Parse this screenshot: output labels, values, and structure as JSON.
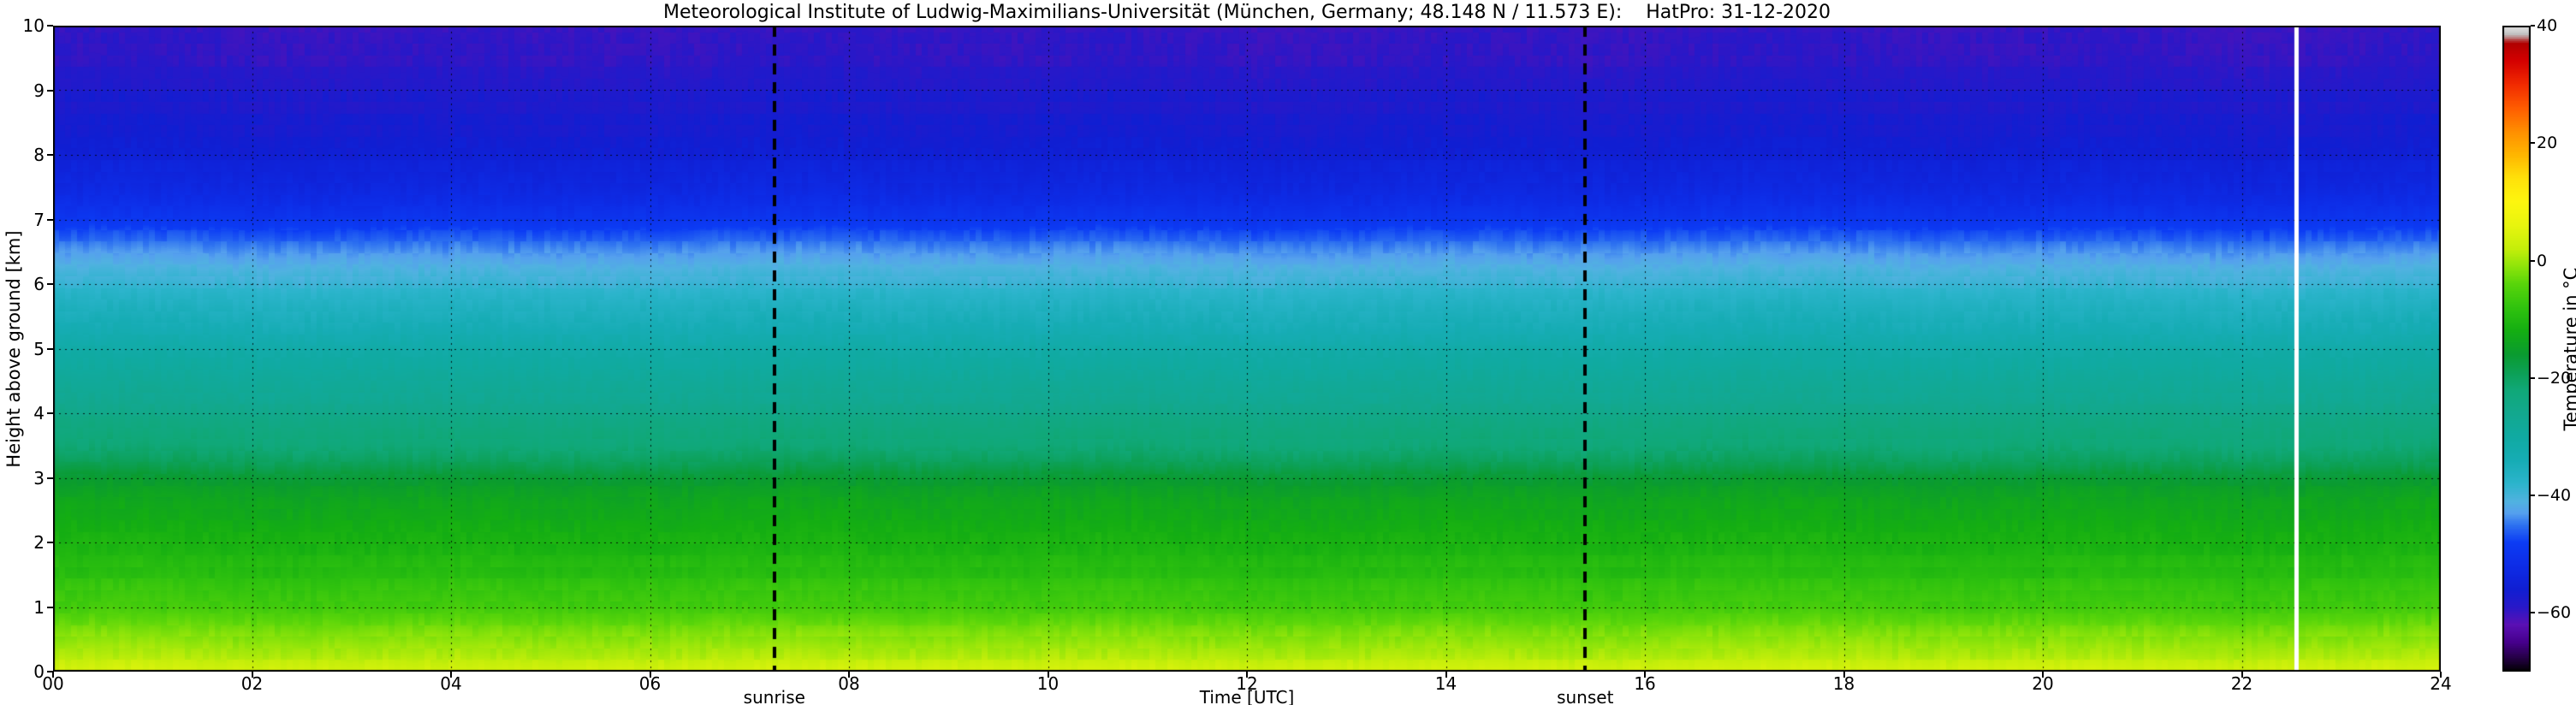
{
  "chart_data": {
    "type": "heatmap",
    "title": "Meteorological Institute of Ludwig-Maximilians-Universität (München, Germany; 48.148 N / 11.573 E):    HatPro: 31-12-2020",
    "xlabel": "Time [UTC]",
    "ylabel": "Height above ground [km]",
    "x_range_hours": [
      0,
      24
    ],
    "y_range_km": [
      0,
      10
    ],
    "grid_style": "dotted",
    "x_ticks": {
      "values": [
        0,
        2,
        4,
        6,
        8,
        10,
        12,
        14,
        16,
        18,
        20,
        22,
        24
      ],
      "labels": [
        "00",
        "02",
        "04",
        "06",
        "08",
        "10",
        "12",
        "14",
        "16",
        "18",
        "20",
        "22",
        "24"
      ]
    },
    "y_ticks": {
      "values": [
        0,
        1,
        2,
        3,
        4,
        5,
        6,
        7,
        8,
        9,
        10
      ],
      "labels": [
        "0",
        "1",
        "2",
        "3",
        "4",
        "5",
        "6",
        "7",
        "8",
        "9",
        "10"
      ]
    },
    "colorbar": {
      "label": "Temperature in °C",
      "tick_values": [
        40,
        20,
        0,
        -20,
        -40,
        -60
      ],
      "tick_labels": [
        "40",
        "20",
        "0",
        "−20",
        "−40",
        "−60"
      ],
      "range": [
        -70,
        40
      ],
      "stops": [
        [
          -70,
          "#000000"
        ],
        [
          -68,
          "#20003c"
        ],
        [
          -65,
          "#46008c"
        ],
        [
          -62,
          "#5a10b4"
        ],
        [
          -59,
          "#2818c8"
        ],
        [
          -56,
          "#101ed2"
        ],
        [
          -52,
          "#0d2ce6"
        ],
        [
          -48,
          "#0c3cf4"
        ],
        [
          -45,
          "#2e72f0"
        ],
        [
          -43,
          "#55a0ee"
        ],
        [
          -41,
          "#50b2e0"
        ],
        [
          -38,
          "#2cb4cc"
        ],
        [
          -34,
          "#16acb4"
        ],
        [
          -30,
          "#10aaa2"
        ],
        [
          -26,
          "#12a88e"
        ],
        [
          -22,
          "#10a878"
        ],
        [
          -19,
          "#0ca054"
        ],
        [
          -16,
          "#0a9b30"
        ],
        [
          -12,
          "#14ae12"
        ],
        [
          -8,
          "#30c30e"
        ],
        [
          -4,
          "#58d50a"
        ],
        [
          -1,
          "#8ee40a"
        ],
        [
          2,
          "#c4ee0a"
        ],
        [
          6,
          "#e8f50e"
        ],
        [
          10,
          "#fdf60e"
        ],
        [
          14,
          "#ffe10a"
        ],
        [
          18,
          "#ffb600"
        ],
        [
          22,
          "#ff8e00"
        ],
        [
          26,
          "#ff5c00"
        ],
        [
          30,
          "#f12a00"
        ],
        [
          34,
          "#d40000"
        ],
        [
          37,
          "#b00000"
        ],
        [
          38.5,
          "#c0c0c0"
        ],
        [
          40,
          "#e8e8e8"
        ]
      ]
    },
    "events": [
      {
        "label": "sunrise",
        "time_utc": 7.25,
        "style": "dashed-black"
      },
      {
        "label": "sunset",
        "time_utc": 15.4,
        "style": "dashed-black"
      }
    ],
    "data_gap": {
      "time_utc": 22.55,
      "color": "#ffffff"
    },
    "profile": {
      "heights_km": [
        0,
        0.2,
        0.4,
        0.7,
        1.0,
        1.4,
        1.8,
        2.2,
        2.6,
        3.0,
        3.2,
        3.5,
        4.0,
        4.5,
        5.0,
        5.5,
        6.0,
        6.3,
        6.55,
        6.8,
        7.0,
        7.3,
        7.7,
        8.0,
        8.6,
        9.2,
        10.0
      ],
      "temps_c": [
        3.5,
        1.5,
        0,
        -3,
        -6,
        -8.5,
        -10.5,
        -12,
        -13.5,
        -16,
        -19,
        -22,
        -25,
        -28.5,
        -31.5,
        -35,
        -39,
        -42,
        -44.5,
        -47,
        -49.5,
        -52,
        -54.5,
        -55.5,
        -57,
        -58.5,
        -60
      ]
    }
  }
}
